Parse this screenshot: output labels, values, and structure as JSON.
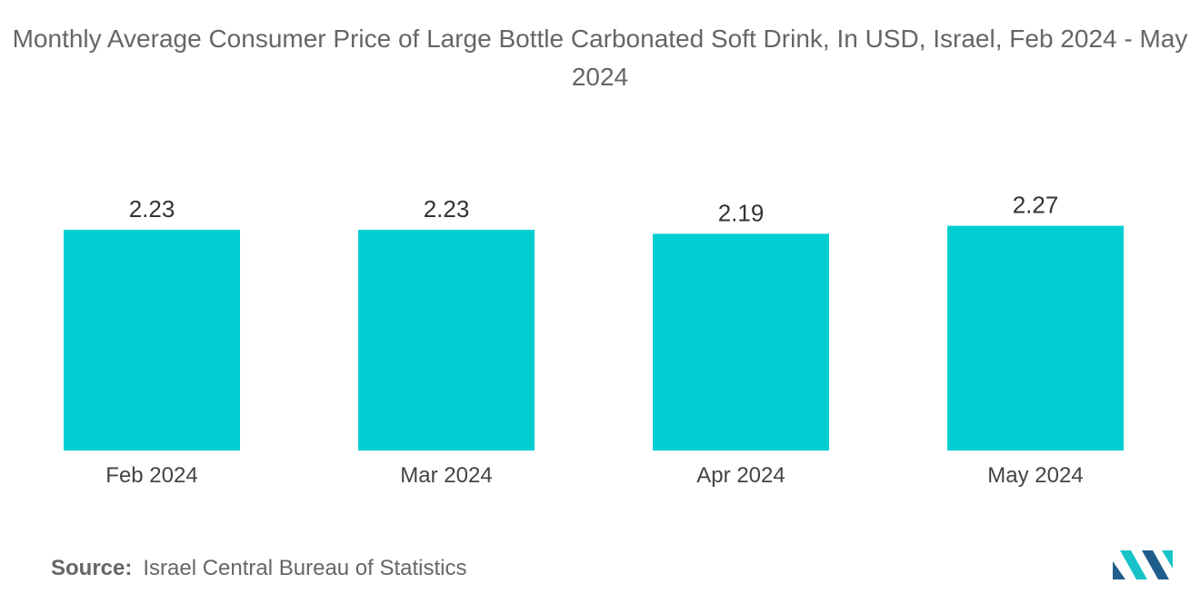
{
  "chart_data": {
    "type": "bar",
    "title": "Monthly Average Consumer Price of Large Bottle Carbonated Soft Drink, In USD, Israel, Feb 2024 - May 2024",
    "categories": [
      "Feb 2024",
      "Mar 2024",
      "Apr 2024",
      "May 2024"
    ],
    "values": [
      2.23,
      2.23,
      2.19,
      2.27
    ],
    "value_labels": [
      "2.23",
      "2.23",
      "2.19",
      "2.27"
    ],
    "xlabel": "",
    "ylabel": "",
    "grid": false,
    "legend": "none",
    "bar_color": "#00CED1"
  },
  "source": {
    "label": "Source:",
    "text": "Israel Central Bureau of Statistics"
  },
  "colors": {
    "logo_dark": "#1F5E8C",
    "logo_light": "#17C3C8"
  }
}
